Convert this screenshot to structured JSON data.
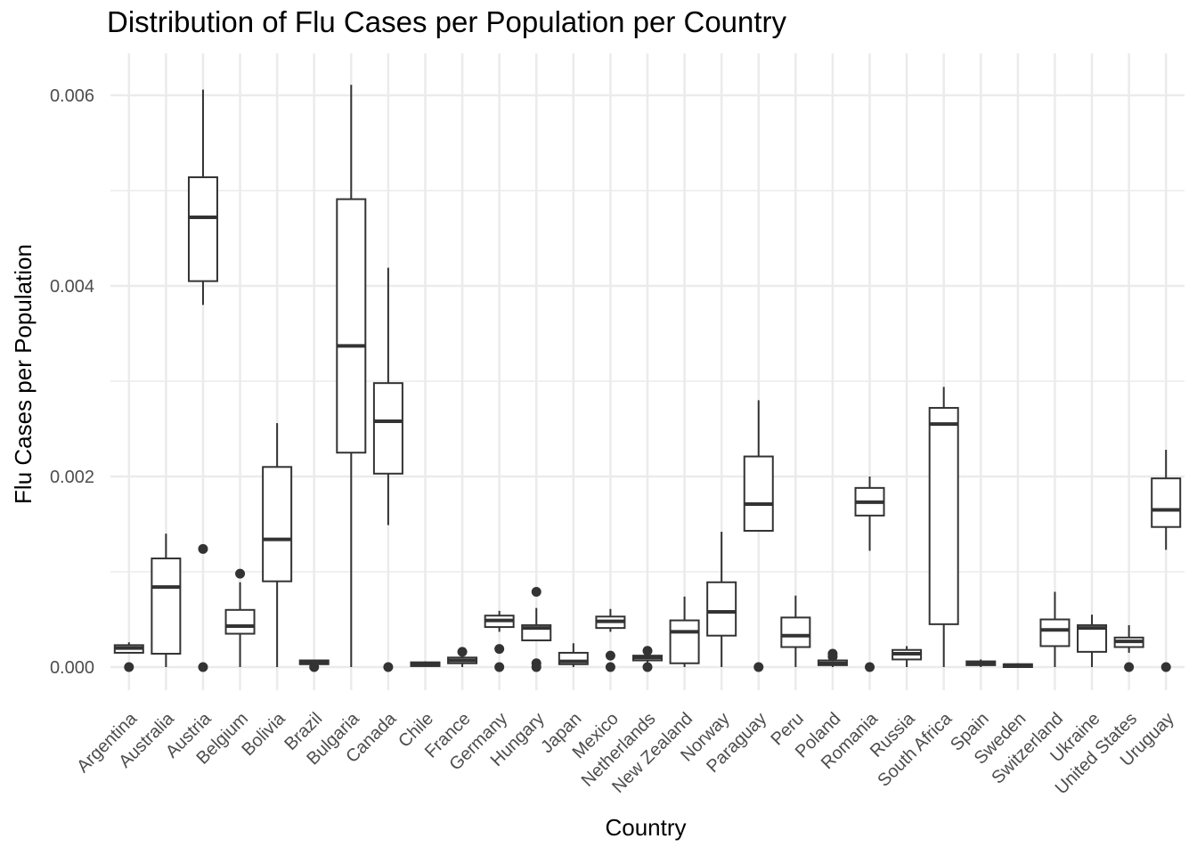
{
  "chart_data": {
    "type": "box",
    "title": "Distribution of Flu Cases per Population per Country",
    "xlabel": "Country",
    "ylabel": "Flu Cases per Population",
    "ylim": [
      -0.00025,
      0.0064
    ],
    "y_ticks": [
      0.0,
      0.002,
      0.004,
      0.006
    ],
    "y_tick_labels": [
      "0.000",
      "0.002",
      "0.004",
      "0.006"
    ],
    "grid": true,
    "categories": [
      "Argentina",
      "Australia",
      "Austria",
      "Belgium",
      "Bolivia",
      "Brazil",
      "Bulgaria",
      "Canada",
      "Chile",
      "France",
      "Germany",
      "Hungary",
      "Japan",
      "Mexico",
      "Netherlands",
      "New Zealand",
      "Norway",
      "Paraguay",
      "Peru",
      "Poland",
      "Romania",
      "Russia",
      "South Africa",
      "Spain",
      "Sweden",
      "Switzerland",
      "Ukraine",
      "United States",
      "Uruguay"
    ],
    "boxes": [
      {
        "whisker_low": 0.00014,
        "q1": 0.00015,
        "median": 0.0002,
        "q3": 0.00023,
        "whisker_high": 0.00026,
        "outliers": [
          0.0
        ]
      },
      {
        "whisker_low": 0.0,
        "q1": 0.00014,
        "median": 0.00084,
        "q3": 0.00114,
        "whisker_high": 0.0014,
        "outliers": []
      },
      {
        "whisker_low": 0.0038,
        "q1": 0.00405,
        "median": 0.00472,
        "q3": 0.00514,
        "whisker_high": 0.00606,
        "outliers": [
          0.00124,
          0.0
        ]
      },
      {
        "whisker_low": 0.0,
        "q1": 0.00035,
        "median": 0.00043,
        "q3": 0.0006,
        "whisker_high": 0.00089,
        "outliers": [
          0.00098
        ]
      },
      {
        "whisker_low": 0.0,
        "q1": 0.0009,
        "median": 0.00134,
        "q3": 0.0021,
        "whisker_high": 0.00256,
        "outliers": []
      },
      {
        "whisker_low": 2e-05,
        "q1": 3e-05,
        "median": 5e-05,
        "q3": 7e-05,
        "whisker_high": 7e-05,
        "outliers": [
          0.0
        ]
      },
      {
        "whisker_low": 0.0,
        "q1": 0.00225,
        "median": 0.00337,
        "q3": 0.00491,
        "whisker_high": 0.00611,
        "outliers": []
      },
      {
        "whisker_low": 0.00149,
        "q1": 0.00203,
        "median": 0.00258,
        "q3": 0.00298,
        "whisker_high": 0.00419,
        "outliers": [
          0.0
        ]
      },
      {
        "whisker_low": 0.0,
        "q1": 1e-05,
        "median": 3e-05,
        "q3": 5e-05,
        "whisker_high": 6e-05,
        "outliers": []
      },
      {
        "whisker_low": 0.0,
        "q1": 4e-05,
        "median": 7e-05,
        "q3": 0.0001,
        "whisker_high": 0.00012,
        "outliers": [
          0.00016
        ]
      },
      {
        "whisker_low": 0.00037,
        "q1": 0.00042,
        "median": 0.00049,
        "q3": 0.00054,
        "whisker_high": 0.00059,
        "outliers": [
          0.00019,
          0.0
        ]
      },
      {
        "whisker_low": 0.00028,
        "q1": 0.00028,
        "median": 0.00041,
        "q3": 0.00044,
        "whisker_high": 0.00062,
        "outliers": [
          0.00079,
          4e-05,
          0.0
        ]
      },
      {
        "whisker_low": 0.0,
        "q1": 3e-05,
        "median": 6e-05,
        "q3": 0.00015,
        "whisker_high": 0.00025,
        "outliers": []
      },
      {
        "whisker_low": 0.00037,
        "q1": 0.00041,
        "median": 0.00048,
        "q3": 0.00053,
        "whisker_high": 0.00061,
        "outliers": [
          0.00012,
          0.0
        ]
      },
      {
        "whisker_low": 5e-05,
        "q1": 7e-05,
        "median": 0.0001,
        "q3": 0.00012,
        "whisker_high": 0.00014,
        "outliers": [
          0.00017,
          0.0
        ]
      },
      {
        "whisker_low": 0.0,
        "q1": 4e-05,
        "median": 0.00037,
        "q3": 0.00049,
        "whisker_high": 0.00074,
        "outliers": []
      },
      {
        "whisker_low": 0.0,
        "q1": 0.00033,
        "median": 0.00058,
        "q3": 0.00089,
        "whisker_high": 0.00142,
        "outliers": []
      },
      {
        "whisker_low": 0.00142,
        "q1": 0.00143,
        "median": 0.00171,
        "q3": 0.00221,
        "whisker_high": 0.0028,
        "outliers": [
          0.0
        ]
      },
      {
        "whisker_low": 0.0,
        "q1": 0.00021,
        "median": 0.00033,
        "q3": 0.00052,
        "whisker_high": 0.00075,
        "outliers": []
      },
      {
        "whisker_low": 0.0,
        "q1": 2e-05,
        "median": 4e-05,
        "q3": 7e-05,
        "whisker_high": 8e-05,
        "outliers": [
          0.00014,
          0.00011
        ]
      },
      {
        "whisker_low": 0.00122,
        "q1": 0.00159,
        "median": 0.00173,
        "q3": 0.00188,
        "whisker_high": 0.002,
        "outliers": [
          0.0
        ]
      },
      {
        "whisker_low": 0.0,
        "q1": 8e-05,
        "median": 0.00014,
        "q3": 0.00018,
        "whisker_high": 0.00022,
        "outliers": []
      },
      {
        "whisker_low": 0.0,
        "q1": 0.00045,
        "median": 0.00255,
        "q3": 0.00272,
        "whisker_high": 0.00294,
        "outliers": []
      },
      {
        "whisker_low": 0.0,
        "q1": 2e-05,
        "median": 4e-05,
        "q3": 6e-05,
        "whisker_high": 8e-05,
        "outliers": []
      },
      {
        "whisker_low": 0.0,
        "q1": 0.0,
        "median": 2e-05,
        "q3": 3e-05,
        "whisker_high": 4e-05,
        "outliers": []
      },
      {
        "whisker_low": 0.0,
        "q1": 0.00022,
        "median": 0.00039,
        "q3": 0.0005,
        "whisker_high": 0.00079,
        "outliers": []
      },
      {
        "whisker_low": 0.0,
        "q1": 0.00016,
        "median": 0.00041,
        "q3": 0.00044,
        "whisker_high": 0.00055,
        "outliers": []
      },
      {
        "whisker_low": 0.00015,
        "q1": 0.00021,
        "median": 0.00027,
        "q3": 0.00031,
        "whisker_high": 0.00044,
        "outliers": [
          0.0
        ]
      },
      {
        "whisker_low": 0.00123,
        "q1": 0.00147,
        "median": 0.00165,
        "q3": 0.00198,
        "whisker_high": 0.00228,
        "outliers": [
          0.0
        ]
      }
    ]
  }
}
